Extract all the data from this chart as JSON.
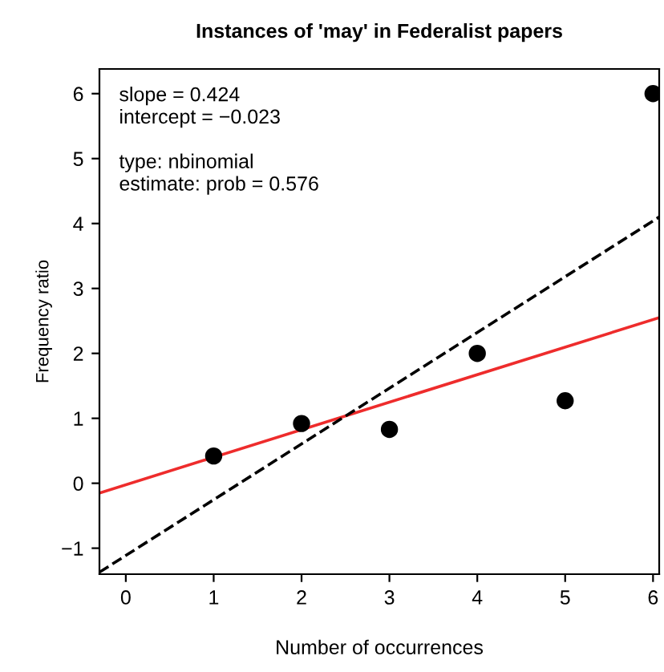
{
  "chart_data": {
    "type": "scatter",
    "title": "Instances of 'may' in Federalist papers",
    "xlabel": "Number of occurrences",
    "ylabel": "Frequency ratio",
    "xlim": [
      -0.3,
      6.07
    ],
    "ylim": [
      -1.4,
      6.38
    ],
    "xticks": [
      0,
      1,
      2,
      3,
      4,
      5,
      6
    ],
    "yticks": [
      -1,
      0,
      1,
      2,
      3,
      4,
      5,
      6
    ],
    "grid": false,
    "legend": false,
    "series": [
      {
        "color": "#000000",
        "marker": "circle",
        "x": [
          1,
          2,
          3,
          4,
          5,
          6
        ],
        "values": [
          0.42,
          0.92,
          0.83,
          2.0,
          1.27,
          6.0
        ]
      },
      {
        "type": "line",
        "color": "#ee2c2c",
        "line_style": "solid",
        "marker": "none",
        "x": [
          -0.3,
          6.07
        ],
        "values": [
          -0.15,
          2.55
        ]
      },
      {
        "type": "line",
        "color": "#000000",
        "line_style": "dashed",
        "marker": "none",
        "x": [
          -0.3,
          6.07
        ],
        "values": [
          -1.37,
          4.1
        ]
      }
    ],
    "annotations": [
      "slope = 0.424\nintercept = −0.023\n\ntype: nbinomial\nestimate: prob = 0.576"
    ]
  }
}
